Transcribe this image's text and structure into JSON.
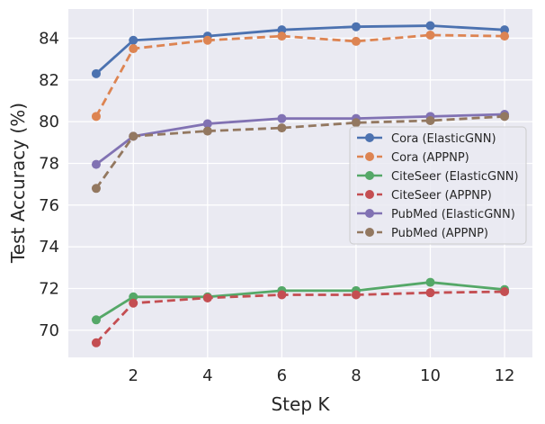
{
  "chart_data": {
    "type": "line",
    "xlabel": "Step K",
    "ylabel": "Test Accuracy (%)",
    "x": [
      1,
      2,
      4,
      6,
      8,
      10,
      12
    ],
    "xticks": [
      2,
      4,
      6,
      8,
      10,
      12
    ],
    "yticks": [
      70,
      72,
      74,
      76,
      78,
      80,
      82,
      84
    ],
    "xlim": [
      0.25,
      12.75
    ],
    "ylim": [
      68.7,
      85.4
    ],
    "grid": true,
    "legend_position": "center-right",
    "series": [
      {
        "name": "Cora (ElasticGNN)",
        "color": "#4c72b0",
        "dash": "solid",
        "values": [
          82.3,
          83.9,
          84.1,
          84.4,
          84.55,
          84.6,
          84.4
        ]
      },
      {
        "name": "Cora (APPNP)",
        "color": "#dd8452",
        "dash": "dashed",
        "values": [
          80.25,
          83.5,
          83.9,
          84.1,
          83.85,
          84.15,
          84.1
        ]
      },
      {
        "name": "CiteSeer (ElasticGNN)",
        "color": "#55a868",
        "dash": "solid",
        "values": [
          70.5,
          71.6,
          71.6,
          71.9,
          71.9,
          72.3,
          71.95
        ]
      },
      {
        "name": "CiteSeer (APPNP)",
        "color": "#c44e52",
        "dash": "dashed",
        "values": [
          69.4,
          71.3,
          71.55,
          71.7,
          71.7,
          71.8,
          71.85
        ]
      },
      {
        "name": "PubMed (ElasticGNN)",
        "color": "#8172b3",
        "dash": "solid",
        "values": [
          77.95,
          79.3,
          79.9,
          80.15,
          80.15,
          80.25,
          80.35
        ]
      },
      {
        "name": "PubMed (APPNP)",
        "color": "#937860",
        "dash": "dashed",
        "values": [
          76.8,
          79.3,
          79.55,
          79.7,
          79.95,
          80.05,
          80.25
        ]
      }
    ]
  }
}
